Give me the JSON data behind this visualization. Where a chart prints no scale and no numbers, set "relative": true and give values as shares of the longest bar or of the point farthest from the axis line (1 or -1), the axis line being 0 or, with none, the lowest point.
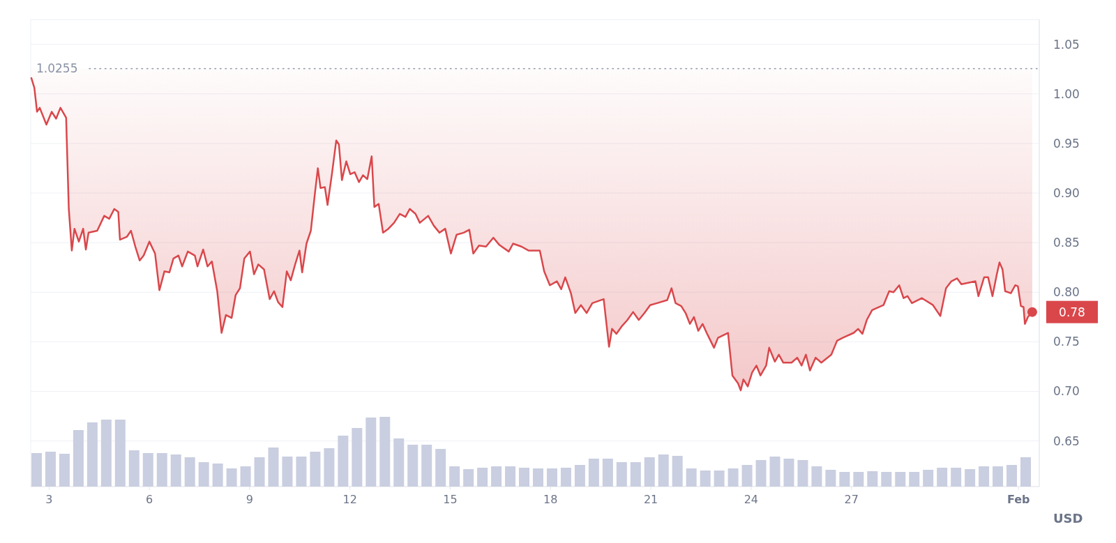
{
  "chart_data": [
    {
      "type": "line",
      "ylabel": "USD",
      "xlim": [
        2.45,
        32.62
      ],
      "ylim": [
        0.604,
        1.075
      ],
      "xticks": [
        3,
        6,
        9,
        12,
        15,
        18,
        21,
        24,
        27,
        {
          "value": 32,
          "label": "Feb"
        }
      ],
      "yticks": [
        {
          "value": 0.65,
          "label": "0.65"
        },
        {
          "value": 0.7,
          "label": "0.70"
        },
        {
          "value": 0.75,
          "label": "0.75"
        },
        {
          "value": 0.8,
          "label": "0.80"
        },
        {
          "value": 0.85,
          "label": "0.85"
        },
        {
          "value": 0.9,
          "label": "0.90"
        },
        {
          "value": 0.95,
          "label": "0.95"
        },
        {
          "value": 1.0,
          "label": "1.00"
        },
        {
          "value": 1.05,
          "label": "1.05"
        }
      ],
      "grid": "y",
      "ref_lines": [
        {
          "axis": "y",
          "value": 1.0255,
          "label": "1.0255",
          "line_style": "dotted",
          "color": "#8a93a6"
        }
      ],
      "annotations": [
        {
          "text": "0.78",
          "x": 32.41,
          "y": 0.78
        }
      ],
      "series": [
        {
          "color": "#d9474b",
          "x": [
            2.47,
            2.56,
            2.64,
            2.72,
            2.92,
            3.08,
            3.21,
            3.34,
            3.51,
            3.59,
            3.68,
            3.76,
            3.89,
            4.02,
            4.1,
            4.18,
            4.44,
            4.65,
            4.8,
            4.95,
            5.07,
            5.12,
            5.33,
            5.45,
            5.58,
            5.71,
            5.83,
            6.0,
            6.17,
            6.3,
            6.45,
            6.6,
            6.72,
            6.87,
            6.98,
            7.15,
            7.36,
            7.44,
            7.61,
            7.74,
            7.87,
            8.03,
            8.16,
            8.29,
            8.46,
            8.58,
            8.71,
            8.84,
            9.01,
            9.13,
            9.26,
            9.43,
            9.6,
            9.73,
            9.85,
            9.98,
            10.11,
            10.23,
            10.36,
            10.49,
            10.57,
            10.7,
            10.83,
            10.95,
            11.04,
            11.12,
            11.25,
            11.33,
            11.46,
            11.59,
            11.67,
            11.76,
            11.89,
            12.01,
            12.14,
            12.27,
            12.39,
            12.52,
            12.65,
            12.73,
            12.86,
            12.99,
            13.15,
            13.32,
            13.49,
            13.66,
            13.79,
            13.96,
            14.09,
            14.34,
            14.51,
            14.68,
            14.85,
            15.02,
            15.19,
            15.4,
            15.57,
            15.69,
            15.86,
            16.07,
            16.29,
            16.46,
            16.75,
            16.88,
            17.13,
            17.34,
            17.68,
            17.81,
            17.98,
            18.19,
            18.32,
            18.44,
            18.61,
            18.74,
            18.91,
            19.08,
            19.25,
            19.59,
            19.75,
            19.84,
            19.97,
            20.14,
            20.3,
            20.47,
            20.64,
            20.81,
            20.98,
            21.19,
            21.49,
            21.62,
            21.74,
            21.91,
            22.04,
            22.17,
            22.29,
            22.42,
            22.55,
            22.67,
            22.89,
            23.01,
            23.31,
            23.44,
            23.61,
            23.69,
            23.77,
            23.9,
            24.03,
            24.16,
            24.28,
            24.45,
            24.54,
            24.71,
            24.83,
            24.96,
            25.21,
            25.38,
            25.51,
            25.64,
            25.76,
            25.93,
            26.1,
            26.4,
            26.57,
            26.74,
            27.07,
            27.2,
            27.33,
            27.46,
            27.62,
            27.96,
            28.13,
            28.26,
            28.43,
            28.56,
            28.68,
            28.81,
            29.11,
            29.44,
            29.66,
            29.83,
            29.99,
            30.16,
            30.29,
            30.71,
            30.8,
            30.97,
            31.09,
            31.22,
            31.35,
            31.43,
            31.52,
            31.6,
            31.77,
            31.9,
            31.98,
            32.07,
            32.15,
            32.19,
            32.28,
            32.41
          ],
          "values": [
            1.016,
            1.006,
            0.982,
            0.986,
            0.969,
            0.982,
            0.975,
            0.986,
            0.976,
            0.884,
            0.842,
            0.864,
            0.851,
            0.864,
            0.843,
            0.86,
            0.862,
            0.877,
            0.874,
            0.884,
            0.881,
            0.853,
            0.856,
            0.862,
            0.846,
            0.832,
            0.837,
            0.851,
            0.839,
            0.802,
            0.821,
            0.82,
            0.834,
            0.837,
            0.826,
            0.841,
            0.837,
            0.826,
            0.843,
            0.826,
            0.831,
            0.801,
            0.759,
            0.777,
            0.774,
            0.797,
            0.804,
            0.834,
            0.841,
            0.818,
            0.828,
            0.823,
            0.793,
            0.801,
            0.79,
            0.785,
            0.821,
            0.812,
            0.828,
            0.842,
            0.82,
            0.849,
            0.862,
            0.899,
            0.925,
            0.905,
            0.906,
            0.888,
            0.919,
            0.953,
            0.949,
            0.913,
            0.932,
            0.919,
            0.921,
            0.911,
            0.918,
            0.914,
            0.937,
            0.886,
            0.889,
            0.86,
            0.864,
            0.87,
            0.879,
            0.876,
            0.884,
            0.879,
            0.87,
            0.877,
            0.867,
            0.86,
            0.864,
            0.839,
            0.858,
            0.86,
            0.863,
            0.839,
            0.847,
            0.846,
            0.855,
            0.848,
            0.841,
            0.849,
            0.846,
            0.842,
            0.842,
            0.821,
            0.807,
            0.811,
            0.803,
            0.815,
            0.799,
            0.779,
            0.787,
            0.779,
            0.789,
            0.793,
            0.745,
            0.763,
            0.758,
            0.766,
            0.772,
            0.78,
            0.772,
            0.779,
            0.787,
            0.789,
            0.792,
            0.804,
            0.789,
            0.786,
            0.779,
            0.768,
            0.775,
            0.761,
            0.768,
            0.759,
            0.744,
            0.754,
            0.759,
            0.716,
            0.708,
            0.701,
            0.712,
            0.705,
            0.719,
            0.726,
            0.716,
            0.726,
            0.744,
            0.73,
            0.737,
            0.729,
            0.729,
            0.734,
            0.726,
            0.737,
            0.721,
            0.734,
            0.729,
            0.737,
            0.751,
            0.754,
            0.759,
            0.763,
            0.758,
            0.772,
            0.782,
            0.787,
            0.801,
            0.8,
            0.807,
            0.794,
            0.796,
            0.789,
            0.794,
            0.787,
            0.776,
            0.804,
            0.811,
            0.814,
            0.808,
            0.811,
            0.796,
            0.815,
            0.815,
            0.796,
            0.818,
            0.83,
            0.823,
            0.801,
            0.799,
            0.807,
            0.806,
            0.786,
            0.785,
            0.768,
            0.775,
            0.78
          ],
          "lower": [
            1.016,
            1.006,
            0.982,
            0.986,
            0.969,
            0.982,
            0.975,
            0.986,
            0.976,
            0.884,
            0.842,
            0.864,
            0.851,
            0.864,
            0.843,
            0.86,
            0.862,
            0.877,
            0.874,
            0.884,
            0.881,
            0.853,
            0.856,
            0.862,
            0.846,
            0.832,
            0.837,
            0.851,
            0.839,
            0.802,
            0.821,
            0.82,
            0.834,
            0.837,
            0.826,
            0.841,
            0.837,
            0.826,
            0.843,
            0.826,
            0.831,
            0.801,
            0.759,
            0.777,
            0.774,
            0.797,
            0.804,
            0.834,
            0.841,
            0.818,
            0.828,
            0.823,
            0.793,
            0.801,
            0.79,
            0.785,
            0.821,
            0.812,
            0.828,
            0.842,
            0.82,
            0.849,
            0.862,
            0.899,
            0.925,
            0.905,
            0.906,
            0.888,
            0.919,
            0.953,
            0.949,
            0.913,
            0.932,
            0.919,
            0.921,
            0.911,
            0.918,
            0.914,
            0.937,
            0.886,
            0.889,
            0.86,
            0.864,
            0.87,
            0.879,
            0.876,
            0.884,
            0.879,
            0.87,
            0.877,
            0.867,
            0.86,
            0.864,
            0.839,
            0.858,
            0.86,
            0.863,
            0.839,
            0.847,
            0.846,
            0.855,
            0.848,
            0.841,
            0.849,
            0.846,
            0.842,
            0.842,
            0.821,
            0.807,
            0.811,
            0.803,
            0.815,
            0.799,
            0.779,
            0.787,
            0.779,
            0.789,
            0.793,
            0.745,
            0.763,
            0.758,
            0.766,
            0.772,
            0.78,
            0.772,
            0.779,
            0.787,
            0.789,
            0.792,
            0.804,
            0.789,
            0.786,
            0.779,
            0.768,
            0.775,
            0.761,
            0.768,
            0.759,
            0.744,
            0.754,
            0.759,
            0.716,
            0.708,
            0.701,
            0.712,
            0.705,
            0.719,
            0.726,
            0.716,
            0.726,
            0.744,
            0.73,
            0.737,
            0.729,
            0.729,
            0.734,
            0.726,
            0.737,
            0.721,
            0.734,
            0.729,
            0.737,
            0.751,
            0.754,
            0.759,
            0.763,
            0.758,
            0.772,
            0.782,
            0.787,
            0.801,
            0.8,
            0.807,
            0.794,
            0.796,
            0.789,
            0.794,
            0.787,
            0.776,
            0.804,
            0.811,
            0.814,
            0.808,
            0.811,
            0.796,
            0.815,
            0.815,
            0.796,
            0.818,
            0.83,
            0.823,
            0.801,
            0.799,
            0.807,
            0.806,
            0.786,
            0.785,
            0.768,
            0.775,
            0.78
          ],
          "upper": [
            1.0255,
            1.0255,
            1.0255,
            1.0255,
            1.0255,
            1.0255,
            1.0255,
            1.0255,
            1.0255,
            1.0255,
            1.0255,
            1.0255,
            1.0255,
            1.0255,
            1.0255,
            1.0255,
            1.0255,
            1.0255,
            1.0255,
            1.0255,
            1.0255,
            1.0255,
            1.0255,
            1.0255,
            1.0255,
            1.0255,
            1.0255,
            1.0255,
            1.0255,
            1.0255,
            1.0255,
            1.0255,
            1.0255,
            1.0255,
            1.0255,
            1.0255,
            1.0255,
            1.0255,
            1.0255,
            1.0255,
            1.0255,
            1.0255,
            1.0255,
            1.0255,
            1.0255,
            1.0255,
            1.0255,
            1.0255,
            1.0255,
            1.0255,
            1.0255,
            1.0255,
            1.0255,
            1.0255,
            1.0255,
            1.0255,
            1.0255,
            1.0255,
            1.0255,
            1.0255,
            1.0255,
            1.0255,
            1.0255,
            1.0255,
            1.0255,
            1.0255,
            1.0255,
            1.0255,
            1.0255,
            1.0255,
            1.0255,
            1.0255,
            1.0255,
            1.0255,
            1.0255,
            1.0255,
            1.0255,
            1.0255,
            1.0255,
            1.0255,
            1.0255,
            1.0255,
            1.0255,
            1.0255,
            1.0255,
            1.0255,
            1.0255,
            1.0255,
            1.0255,
            1.0255,
            1.0255,
            1.0255,
            1.0255,
            1.0255,
            1.0255,
            1.0255,
            1.0255,
            1.0255,
            1.0255,
            1.0255,
            1.0255,
            1.0255,
            1.0255,
            1.0255,
            1.0255,
            1.0255,
            1.0255,
            1.0255,
            1.0255,
            1.0255,
            1.0255,
            1.0255,
            1.0255,
            1.0255,
            1.0255,
            1.0255,
            1.0255,
            1.0255,
            1.0255,
            1.0255,
            1.0255,
            1.0255,
            1.0255,
            1.0255,
            1.0255,
            1.0255,
            1.0255,
            1.0255,
            1.0255,
            1.0255,
            1.0255,
            1.0255,
            1.0255,
            1.0255,
            1.0255,
            1.0255,
            1.0255,
            1.0255,
            1.0255,
            1.0255,
            1.0255,
            1.0255,
            1.0255,
            1.0255,
            1.0255,
            1.0255,
            1.0255,
            1.0255,
            1.0255,
            1.0255,
            1.0255,
            1.0255,
            1.0255,
            1.0255,
            1.0255,
            1.0255,
            1.0255,
            1.0255,
            1.0255,
            1.0255,
            1.0255,
            1.0255,
            1.0255,
            1.0255,
            1.0255,
            1.0255,
            1.0255,
            1.0255,
            1.0255,
            1.0255,
            1.0255,
            1.0255,
            1.0255,
            1.0255,
            1.0255,
            1.0255,
            1.0255,
            1.0255,
            1.0255,
            1.0255,
            1.0255,
            1.0255,
            1.0255,
            1.0255,
            1.0255,
            1.0255,
            1.0255,
            1.0255,
            1.0255,
            1.0255,
            1.0255,
            1.0255,
            1.0255,
            1.0255,
            1.0255,
            1.0255,
            1.0255,
            1.0255,
            1.0255,
            1.0255
          ]
        }
      ]
    },
    {
      "type": "bar",
      "relative": true,
      "color": "#c9cee0",
      "categories": [
        null,
        null,
        null,
        null,
        null,
        null,
        null,
        null,
        null,
        null,
        null,
        null,
        null,
        null,
        null,
        null,
        null,
        null,
        null,
        null,
        null,
        null,
        null,
        null,
        null,
        null,
        null,
        null,
        null,
        null,
        null,
        null,
        null,
        null,
        null,
        null,
        null,
        null,
        null,
        null,
        null,
        null,
        null,
        null,
        null,
        null,
        null,
        null,
        null,
        null,
        null,
        null,
        null,
        null,
        null,
        null,
        null,
        null,
        null,
        null,
        null,
        null,
        null,
        null,
        null,
        null,
        null,
        null,
        null,
        null,
        null,
        null
      ],
      "values": [
        0.48,
        0.5,
        0.47,
        0.81,
        0.92,
        0.96,
        0.96,
        0.52,
        0.48,
        0.48,
        0.46,
        0.42,
        0.35,
        0.33,
        0.26,
        0.29,
        0.42,
        0.56,
        0.43,
        0.43,
        0.5,
        0.55,
        0.73,
        0.84,
        0.99,
        1,
        0.69,
        0.6,
        0.6,
        0.54,
        0.29,
        0.25,
        0.27,
        0.29,
        0.29,
        0.27,
        0.26,
        0.26,
        0.27,
        0.31,
        0.4,
        0.4,
        0.35,
        0.35,
        0.42,
        0.46,
        0.44,
        0.26,
        0.23,
        0.23,
        0.26,
        0.31,
        0.38,
        0.43,
        0.4,
        0.38,
        0.29,
        0.24,
        0.21,
        0.21,
        0.22,
        0.21,
        0.21,
        0.21,
        0.24,
        0.27,
        0.27,
        0.25,
        0.29,
        0.29,
        0.31,
        0.42
      ]
    }
  ]
}
